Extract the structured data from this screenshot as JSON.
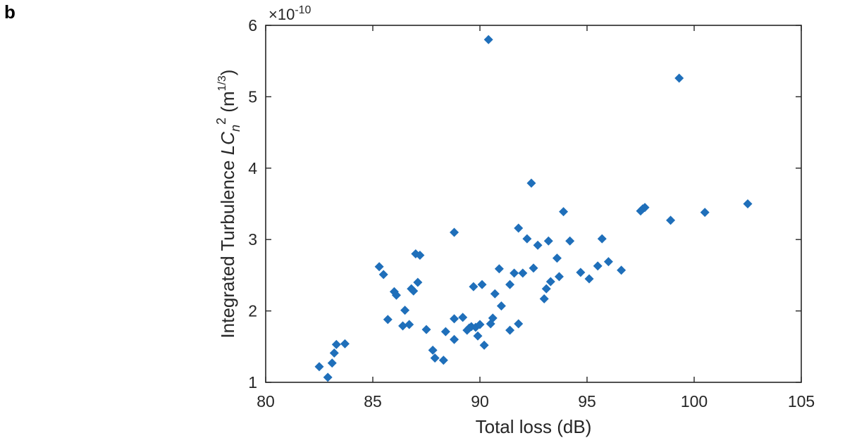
{
  "panel_label": "b",
  "chart_data": {
    "type": "scatter",
    "title": "",
    "xlabel": "Total loss (dB)",
    "ylabel": {
      "prefix": "Integrated Turbulence ",
      "L": "L",
      "C": "C",
      "n": "n",
      "sup2": "2",
      "unit_open": " (m",
      "unit_sup": "1/3",
      "unit_close": ")"
    },
    "y_exponent": {
      "base": "×10",
      "exp": "-10"
    },
    "xlim": [
      80,
      105
    ],
    "ylim": [
      1,
      6
    ],
    "xticks": [
      80,
      85,
      90,
      95,
      100,
      105
    ],
    "yticks": [
      1,
      2,
      3,
      4,
      5,
      6
    ],
    "xtick_labels": [
      "80",
      "85",
      "90",
      "95",
      "100",
      "105"
    ],
    "ytick_labels": [
      "1",
      "2",
      "3",
      "4",
      "5",
      "6"
    ],
    "grid": false,
    "marker": "diamond",
    "color": "#1f6fba",
    "points": [
      [
        82.5,
        1.22
      ],
      [
        82.9,
        1.07
      ],
      [
        83.1,
        1.27
      ],
      [
        83.2,
        1.41
      ],
      [
        83.3,
        1.53
      ],
      [
        83.7,
        1.54
      ],
      [
        85.3,
        2.62
      ],
      [
        85.5,
        2.51
      ],
      [
        85.7,
        1.88
      ],
      [
        86.0,
        2.27
      ],
      [
        86.1,
        2.22
      ],
      [
        86.4,
        1.79
      ],
      [
        86.5,
        2.01
      ],
      [
        86.7,
        1.81
      ],
      [
        86.8,
        2.31
      ],
      [
        86.9,
        2.28
      ],
      [
        87.0,
        2.8
      ],
      [
        87.1,
        2.4
      ],
      [
        87.2,
        2.78
      ],
      [
        87.5,
        1.74
      ],
      [
        87.8,
        1.45
      ],
      [
        87.9,
        1.34
      ],
      [
        88.3,
        1.31
      ],
      [
        88.4,
        1.71
      ],
      [
        88.8,
        3.1
      ],
      [
        88.8,
        1.6
      ],
      [
        88.8,
        1.89
      ],
      [
        89.2,
        1.91
      ],
      [
        89.4,
        1.73
      ],
      [
        89.5,
        1.76
      ],
      [
        89.6,
        1.78
      ],
      [
        89.7,
        2.34
      ],
      [
        89.8,
        1.77
      ],
      [
        89.9,
        1.65
      ],
      [
        90.0,
        1.81
      ],
      [
        90.1,
        2.37
      ],
      [
        90.2,
        1.52
      ],
      [
        90.4,
        5.8
      ],
      [
        90.5,
        1.82
      ],
      [
        90.6,
        1.9
      ],
      [
        90.7,
        2.24
      ],
      [
        90.9,
        2.59
      ],
      [
        91.0,
        2.07
      ],
      [
        91.4,
        2.37
      ],
      [
        91.4,
        1.73
      ],
      [
        91.6,
        2.53
      ],
      [
        91.8,
        3.16
      ],
      [
        91.8,
        1.82
      ],
      [
        92.0,
        2.53
      ],
      [
        92.2,
        3.01
      ],
      [
        92.4,
        3.79
      ],
      [
        92.5,
        2.6
      ],
      [
        92.7,
        2.92
      ],
      [
        93.0,
        2.17
      ],
      [
        93.1,
        2.31
      ],
      [
        93.2,
        2.98
      ],
      [
        93.3,
        2.41
      ],
      [
        93.6,
        2.74
      ],
      [
        93.7,
        2.48
      ],
      [
        93.9,
        3.39
      ],
      [
        94.2,
        2.98
      ],
      [
        94.7,
        2.54
      ],
      [
        95.1,
        2.45
      ],
      [
        95.5,
        2.63
      ],
      [
        95.7,
        3.01
      ],
      [
        96.0,
        2.69
      ],
      [
        96.6,
        2.57
      ],
      [
        97.5,
        3.4
      ],
      [
        97.6,
        3.43
      ],
      [
        97.7,
        3.45
      ],
      [
        98.9,
        3.27
      ],
      [
        99.3,
        5.26
      ],
      [
        100.5,
        3.38
      ],
      [
        102.5,
        3.5
      ]
    ]
  }
}
